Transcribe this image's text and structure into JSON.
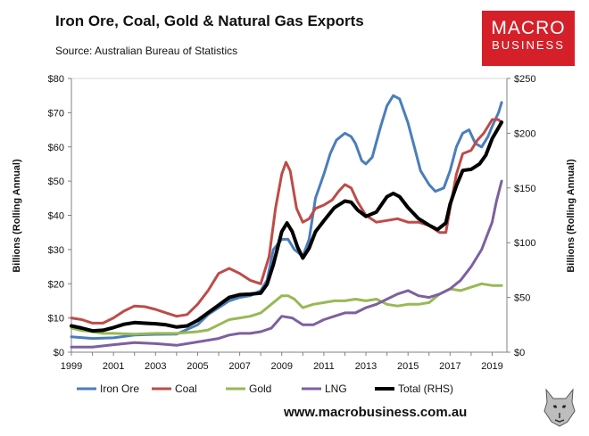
{
  "chart_data": {
    "type": "line",
    "title": "Iron Ore, Coal, Gold & Natural Gas Exports",
    "subtitle": "Source:  Australian Bureau of Statistics",
    "ylabel_left": "Billions (Rolling Annual)",
    "ylabel_right": "Billions (Rolling Annual)",
    "x_ticks": [
      "1999",
      "2001",
      "2003",
      "2005",
      "2007",
      "2009",
      "2011",
      "2013",
      "2015",
      "2017",
      "2019"
    ],
    "xlim": [
      1999,
      2019.7
    ],
    "ylim_left": [
      0,
      80
    ],
    "ylim_right": [
      0,
      250
    ],
    "y_ticks_left": [
      "$0",
      "$10",
      "$20",
      "$30",
      "$40",
      "$50",
      "$60",
      "$70",
      "$80"
    ],
    "y_ticks_right": [
      "$0",
      "$50",
      "$100",
      "$150",
      "$200",
      "$250"
    ],
    "series": [
      {
        "name": "Iron Ore",
        "color": "#4a7ebb",
        "axis": "left",
        "points": [
          [
            1999,
            4.5
          ],
          [
            2000,
            4
          ],
          [
            2001,
            4.2
          ],
          [
            2002,
            5
          ],
          [
            2003,
            5.2
          ],
          [
            2004,
            5.3
          ],
          [
            2005,
            8
          ],
          [
            2005.5,
            11
          ],
          [
            2006,
            13
          ],
          [
            2006.5,
            15
          ],
          [
            2007,
            16
          ],
          [
            2007.5,
            16.5
          ],
          [
            2008,
            18
          ],
          [
            2008.3,
            21
          ],
          [
            2008.6,
            30
          ],
          [
            2009,
            33
          ],
          [
            2009.3,
            33
          ],
          [
            2009.6,
            30
          ],
          [
            2010,
            28
          ],
          [
            2010.3,
            33
          ],
          [
            2010.6,
            45
          ],
          [
            2011,
            52
          ],
          [
            2011.3,
            58
          ],
          [
            2011.6,
            62
          ],
          [
            2012,
            64
          ],
          [
            2012.3,
            63
          ],
          [
            2012.5,
            61
          ],
          [
            2012.8,
            56
          ],
          [
            2013,
            55
          ],
          [
            2013.3,
            57
          ],
          [
            2013.7,
            66
          ],
          [
            2014,
            72
          ],
          [
            2014.3,
            75
          ],
          [
            2014.6,
            74
          ],
          [
            2015,
            67
          ],
          [
            2015.3,
            60
          ],
          [
            2015.6,
            53
          ],
          [
            2016,
            49
          ],
          [
            2016.3,
            47
          ],
          [
            2016.7,
            48
          ],
          [
            2017,
            53
          ],
          [
            2017.3,
            60
          ],
          [
            2017.6,
            64
          ],
          [
            2017.9,
            65
          ],
          [
            2018.2,
            61
          ],
          [
            2018.5,
            60
          ],
          [
            2018.8,
            63
          ],
          [
            2019,
            66
          ],
          [
            2019.3,
            70
          ],
          [
            2019.45,
            73
          ]
        ]
      },
      {
        "name": "Coal",
        "color": "#be4b48",
        "axis": "left",
        "points": [
          [
            1999,
            10
          ],
          [
            1999.5,
            9.5
          ],
          [
            2000,
            8.5
          ],
          [
            2000.5,
            8.5
          ],
          [
            2001,
            10
          ],
          [
            2001.5,
            12
          ],
          [
            2002,
            13.5
          ],
          [
            2002.5,
            13.3
          ],
          [
            2003,
            12.5
          ],
          [
            2003.5,
            11.5
          ],
          [
            2004,
            10.5
          ],
          [
            2004.5,
            11
          ],
          [
            2005,
            14
          ],
          [
            2005.5,
            18
          ],
          [
            2006,
            23
          ],
          [
            2006.5,
            24.5
          ],
          [
            2007,
            23
          ],
          [
            2007.5,
            21
          ],
          [
            2008,
            20
          ],
          [
            2008.4,
            28
          ],
          [
            2008.7,
            42
          ],
          [
            2009,
            52
          ],
          [
            2009.2,
            55.5
          ],
          [
            2009.4,
            53
          ],
          [
            2009.7,
            42
          ],
          [
            2010,
            38
          ],
          [
            2010.3,
            39
          ],
          [
            2010.6,
            42
          ],
          [
            2011,
            43
          ],
          [
            2011.4,
            44.5
          ],
          [
            2011.7,
            47
          ],
          [
            2012,
            49
          ],
          [
            2012.3,
            48
          ],
          [
            2012.6,
            44
          ],
          [
            2013,
            40
          ],
          [
            2013.5,
            38
          ],
          [
            2014,
            38.5
          ],
          [
            2014.5,
            39
          ],
          [
            2015,
            38
          ],
          [
            2015.5,
            38
          ],
          [
            2016,
            37
          ],
          [
            2016.5,
            35
          ],
          [
            2016.8,
            35
          ],
          [
            2017,
            42
          ],
          [
            2017.3,
            52
          ],
          [
            2017.6,
            58
          ],
          [
            2018,
            59
          ],
          [
            2018.3,
            62
          ],
          [
            2018.6,
            64
          ],
          [
            2019,
            68
          ],
          [
            2019.3,
            68
          ],
          [
            2019.45,
            67
          ]
        ]
      },
      {
        "name": "Gold",
        "color": "#98b954",
        "axis": "left",
        "points": [
          [
            1999,
            7
          ],
          [
            1999.5,
            6.3
          ],
          [
            2000,
            6
          ],
          [
            2000.5,
            5.5
          ],
          [
            2001,
            5.5
          ],
          [
            2002,
            5.3
          ],
          [
            2003,
            5.5
          ],
          [
            2004,
            5.5
          ],
          [
            2005,
            6
          ],
          [
            2005.5,
            6.5
          ],
          [
            2006,
            8
          ],
          [
            2006.5,
            9.5
          ],
          [
            2007,
            10
          ],
          [
            2007.5,
            10.5
          ],
          [
            2008,
            11.5
          ],
          [
            2008.5,
            14
          ],
          [
            2009,
            16.5
          ],
          [
            2009.3,
            16.5
          ],
          [
            2009.6,
            15.5
          ],
          [
            2010,
            13
          ],
          [
            2010.5,
            14
          ],
          [
            2011,
            14.5
          ],
          [
            2011.5,
            15
          ],
          [
            2012,
            15
          ],
          [
            2012.5,
            15.5
          ],
          [
            2013,
            15
          ],
          [
            2013.5,
            15.5
          ],
          [
            2014,
            14
          ],
          [
            2014.5,
            13.5
          ],
          [
            2015,
            14
          ],
          [
            2015.5,
            14
          ],
          [
            2016,
            14.5
          ],
          [
            2016.5,
            17
          ],
          [
            2017,
            18.5
          ],
          [
            2017.5,
            18
          ],
          [
            2018,
            19
          ],
          [
            2018.5,
            20
          ],
          [
            2019,
            19.5
          ],
          [
            2019.45,
            19.5
          ]
        ]
      },
      {
        "name": "LNG",
        "color": "#7d60a0",
        "axis": "left",
        "points": [
          [
            1999,
            1.5
          ],
          [
            2000,
            1.5
          ],
          [
            2001,
            2.2
          ],
          [
            2002,
            2.8
          ],
          [
            2003,
            2.5
          ],
          [
            2004,
            2
          ],
          [
            2005,
            3
          ],
          [
            2006,
            4
          ],
          [
            2006.5,
            5
          ],
          [
            2007,
            5.5
          ],
          [
            2007.5,
            5.5
          ],
          [
            2008,
            6
          ],
          [
            2008.5,
            7
          ],
          [
            2009,
            10.5
          ],
          [
            2009.5,
            10
          ],
          [
            2010,
            8
          ],
          [
            2010.5,
            8
          ],
          [
            2011,
            9.5
          ],
          [
            2011.5,
            10.5
          ],
          [
            2012,
            11.5
          ],
          [
            2012.5,
            11.5
          ],
          [
            2013,
            13
          ],
          [
            2013.5,
            14
          ],
          [
            2014,
            15.5
          ],
          [
            2014.5,
            17
          ],
          [
            2015,
            18
          ],
          [
            2015.5,
            16.5
          ],
          [
            2016,
            16
          ],
          [
            2016.5,
            17
          ],
          [
            2017,
            18.5
          ],
          [
            2017.5,
            21
          ],
          [
            2018,
            25
          ],
          [
            2018.5,
            30
          ],
          [
            2019,
            38
          ],
          [
            2019.2,
            44
          ],
          [
            2019.45,
            50
          ]
        ]
      },
      {
        "name": "Total (RHS)",
        "color": "#000000",
        "axis": "right",
        "points": [
          [
            1999,
            24
          ],
          [
            1999.5,
            22
          ],
          [
            2000,
            19.5
          ],
          [
            2000.5,
            20
          ],
          [
            2001,
            22.5
          ],
          [
            2001.5,
            25.5
          ],
          [
            2002,
            27
          ],
          [
            2002.5,
            26.5
          ],
          [
            2003,
            26
          ],
          [
            2003.5,
            25
          ],
          [
            2004,
            23
          ],
          [
            2004.5,
            24
          ],
          [
            2005,
            29
          ],
          [
            2005.5,
            36
          ],
          [
            2006,
            43
          ],
          [
            2006.5,
            50
          ],
          [
            2007,
            52.5
          ],
          [
            2007.5,
            53
          ],
          [
            2008,
            54
          ],
          [
            2008.3,
            62
          ],
          [
            2008.6,
            80
          ],
          [
            2009,
            110
          ],
          [
            2009.25,
            118
          ],
          [
            2009.5,
            110
          ],
          [
            2009.75,
            96
          ],
          [
            2010,
            86
          ],
          [
            2010.3,
            95
          ],
          [
            2010.6,
            110
          ],
          [
            2011,
            120
          ],
          [
            2011.5,
            132
          ],
          [
            2012,
            138
          ],
          [
            2012.3,
            137
          ],
          [
            2012.6,
            130
          ],
          [
            2013,
            124
          ],
          [
            2013.5,
            128
          ],
          [
            2014,
            142
          ],
          [
            2014.3,
            145
          ],
          [
            2014.6,
            142
          ],
          [
            2015,
            132
          ],
          [
            2015.5,
            122
          ],
          [
            2016,
            116
          ],
          [
            2016.4,
            112
          ],
          [
            2016.8,
            118
          ],
          [
            2017,
            135
          ],
          [
            2017.3,
            152
          ],
          [
            2017.6,
            166
          ],
          [
            2018,
            167
          ],
          [
            2018.4,
            172
          ],
          [
            2018.7,
            180
          ],
          [
            2019,
            195
          ],
          [
            2019.3,
            205
          ],
          [
            2019.45,
            210
          ]
        ]
      }
    ],
    "legend_position": "bottom"
  },
  "branding": {
    "logo_top": "MACRO",
    "logo_bottom": "BUSINESS",
    "website": "www.macrobusiness.com.au"
  }
}
